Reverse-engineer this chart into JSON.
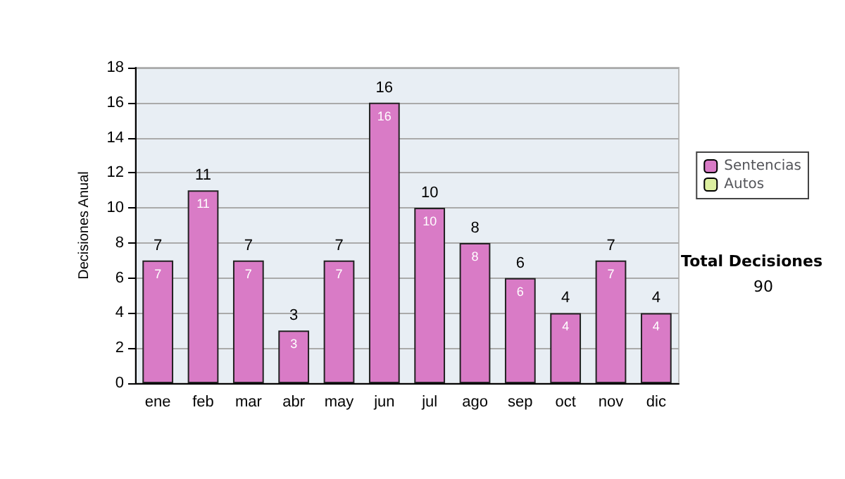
{
  "chart_data": {
    "type": "bar",
    "ylabel": "Decisiones Anual",
    "categories": [
      "ene",
      "feb",
      "mar",
      "abr",
      "may",
      "jun",
      "jul",
      "ago",
      "sep",
      "oct",
      "nov",
      "dic"
    ],
    "series": [
      {
        "name": "Sentencias",
        "color": "#d97bc6",
        "values": [
          7,
          11,
          7,
          3,
          7,
          16,
          10,
          8,
          6,
          4,
          7,
          4
        ],
        "value_labels": [
          "7",
          "11",
          "7",
          "3",
          "7",
          "16",
          "10",
          "8",
          "6",
          "4",
          "7",
          "4"
        ]
      },
      {
        "name": "Autos",
        "color": "#ddf0a0",
        "values": [
          0,
          0,
          0,
          0,
          0,
          0,
          0,
          0,
          0,
          0,
          0,
          0
        ]
      }
    ],
    "stacked": true,
    "totals": [
      "7",
      "11",
      "7",
      "3",
      "7",
      "16",
      "10",
      "8",
      "6",
      "4",
      "7",
      "4"
    ],
    "ylim": [
      0,
      18
    ],
    "yticks": [
      0,
      2,
      4,
      6,
      8,
      10,
      12,
      14,
      16,
      18
    ],
    "grid": "y",
    "legend": "right",
    "annotations": [
      "Total Decisiones",
      "90"
    ]
  }
}
